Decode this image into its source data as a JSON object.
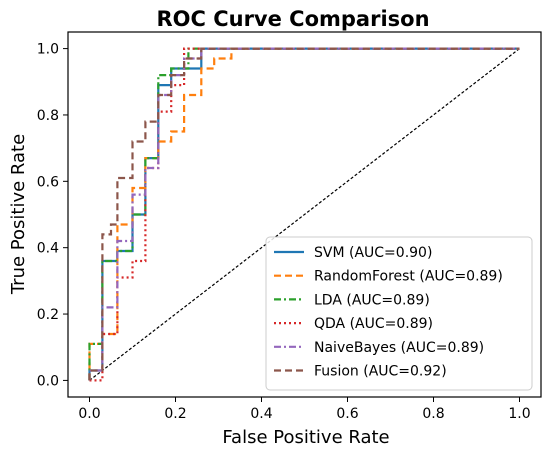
{
  "chart_data": {
    "type": "line",
    "title": "ROC Curve Comparison",
    "xlabel": "False Positive Rate",
    "ylabel": "True Positive Rate",
    "xlim": [
      -0.05,
      1.05
    ],
    "ylim": [
      -0.05,
      1.05
    ],
    "xticks": [
      "0.0",
      "0.2",
      "0.4",
      "0.6",
      "0.8",
      "1.0"
    ],
    "yticks": [
      "0.0",
      "0.2",
      "0.4",
      "0.6",
      "0.8",
      "1.0"
    ],
    "grid": false,
    "legend_position": "lower-right",
    "diagonal": {
      "x": [
        0,
        1
      ],
      "y": [
        0,
        1
      ],
      "color": "#000000",
      "style": "dotted"
    },
    "series": [
      {
        "name": "SVM (AUC=0.90)",
        "color": "#1f77b4",
        "style": "solid",
        "x": [
          0,
          0,
          0.03,
          0.03,
          0.065,
          0.065,
          0.1,
          0.1,
          0.13,
          0.13,
          0.16,
          0.16,
          0.19,
          0.19,
          0.26,
          0.26,
          1.0
        ],
        "y": [
          0,
          0.03,
          0.03,
          0.36,
          0.36,
          0.39,
          0.39,
          0.5,
          0.5,
          0.67,
          0.67,
          0.89,
          0.89,
          0.94,
          0.94,
          1.0,
          1.0
        ]
      },
      {
        "name": "RandomForest (AUC=0.89)",
        "color": "#ff7f0e",
        "style": "dashed",
        "x": [
          0,
          0,
          0.03,
          0.03,
          0.065,
          0.065,
          0.1,
          0.1,
          0.13,
          0.13,
          0.16,
          0.16,
          0.19,
          0.19,
          0.22,
          0.22,
          0.26,
          0.26,
          0.29,
          0.29,
          0.33,
          0.33,
          1.0
        ],
        "y": [
          0,
          0.11,
          0.11,
          0.14,
          0.14,
          0.47,
          0.47,
          0.58,
          0.58,
          0.67,
          0.67,
          0.72,
          0.72,
          0.75,
          0.75,
          0.86,
          0.86,
          0.94,
          0.94,
          0.97,
          0.97,
          1.0,
          1.0
        ]
      },
      {
        "name": "LDA (AUC=0.89)",
        "color": "#2ca02c",
        "style": "dashdot",
        "x": [
          0,
          0,
          0.03,
          0.03,
          0.065,
          0.065,
          0.1,
          0.1,
          0.13,
          0.13,
          0.16,
          0.16,
          0.19,
          0.19,
          0.23,
          0.23,
          1.0
        ],
        "y": [
          0,
          0.11,
          0.11,
          0.36,
          0.36,
          0.39,
          0.39,
          0.5,
          0.5,
          0.67,
          0.67,
          0.92,
          0.92,
          0.94,
          0.94,
          1.0,
          1.0
        ]
      },
      {
        "name": "QDA (AUC=0.89)",
        "color": "#d62728",
        "style": "dotted",
        "x": [
          0,
          0,
          0.03,
          0.03,
          0.065,
          0.065,
          0.1,
          0.1,
          0.13,
          0.13,
          0.16,
          0.16,
          0.19,
          0.19,
          0.22,
          0.22,
          0.26,
          1.0
        ],
        "y": [
          0,
          0.0,
          0.0,
          0.14,
          0.14,
          0.31,
          0.31,
          0.36,
          0.36,
          0.64,
          0.64,
          0.81,
          0.81,
          0.89,
          0.89,
          1.0,
          1.0,
          1.0
        ]
      },
      {
        "name": "NaiveBayes (AUC=0.89)",
        "color": "#9467bd",
        "style": "dashdot",
        "x": [
          0,
          0,
          0.03,
          0.03,
          0.065,
          0.065,
          0.1,
          0.1,
          0.13,
          0.13,
          0.16,
          0.16,
          0.19,
          0.19,
          0.22,
          0.22,
          0.26,
          0.26,
          1.0
        ],
        "y": [
          0,
          0.03,
          0.03,
          0.22,
          0.22,
          0.42,
          0.42,
          0.56,
          0.56,
          0.64,
          0.64,
          0.86,
          0.86,
          0.92,
          0.92,
          0.97,
          0.97,
          1.0,
          1.0
        ]
      },
      {
        "name": "Fusion (AUC=0.92)",
        "color": "#8c564b",
        "style": "dashed",
        "x": [
          0,
          0,
          0.03,
          0.03,
          0.05,
          0.05,
          0.065,
          0.065,
          0.1,
          0.1,
          0.13,
          0.13,
          0.16,
          0.16,
          0.19,
          0.19,
          0.22,
          0.22,
          0.26,
          0.26,
          1.0
        ],
        "y": [
          0,
          0.03,
          0.03,
          0.44,
          0.44,
          0.47,
          0.47,
          0.61,
          0.61,
          0.72,
          0.72,
          0.78,
          0.78,
          0.86,
          0.86,
          0.92,
          0.92,
          0.97,
          0.97,
          1.0,
          1.0
        ]
      }
    ]
  }
}
